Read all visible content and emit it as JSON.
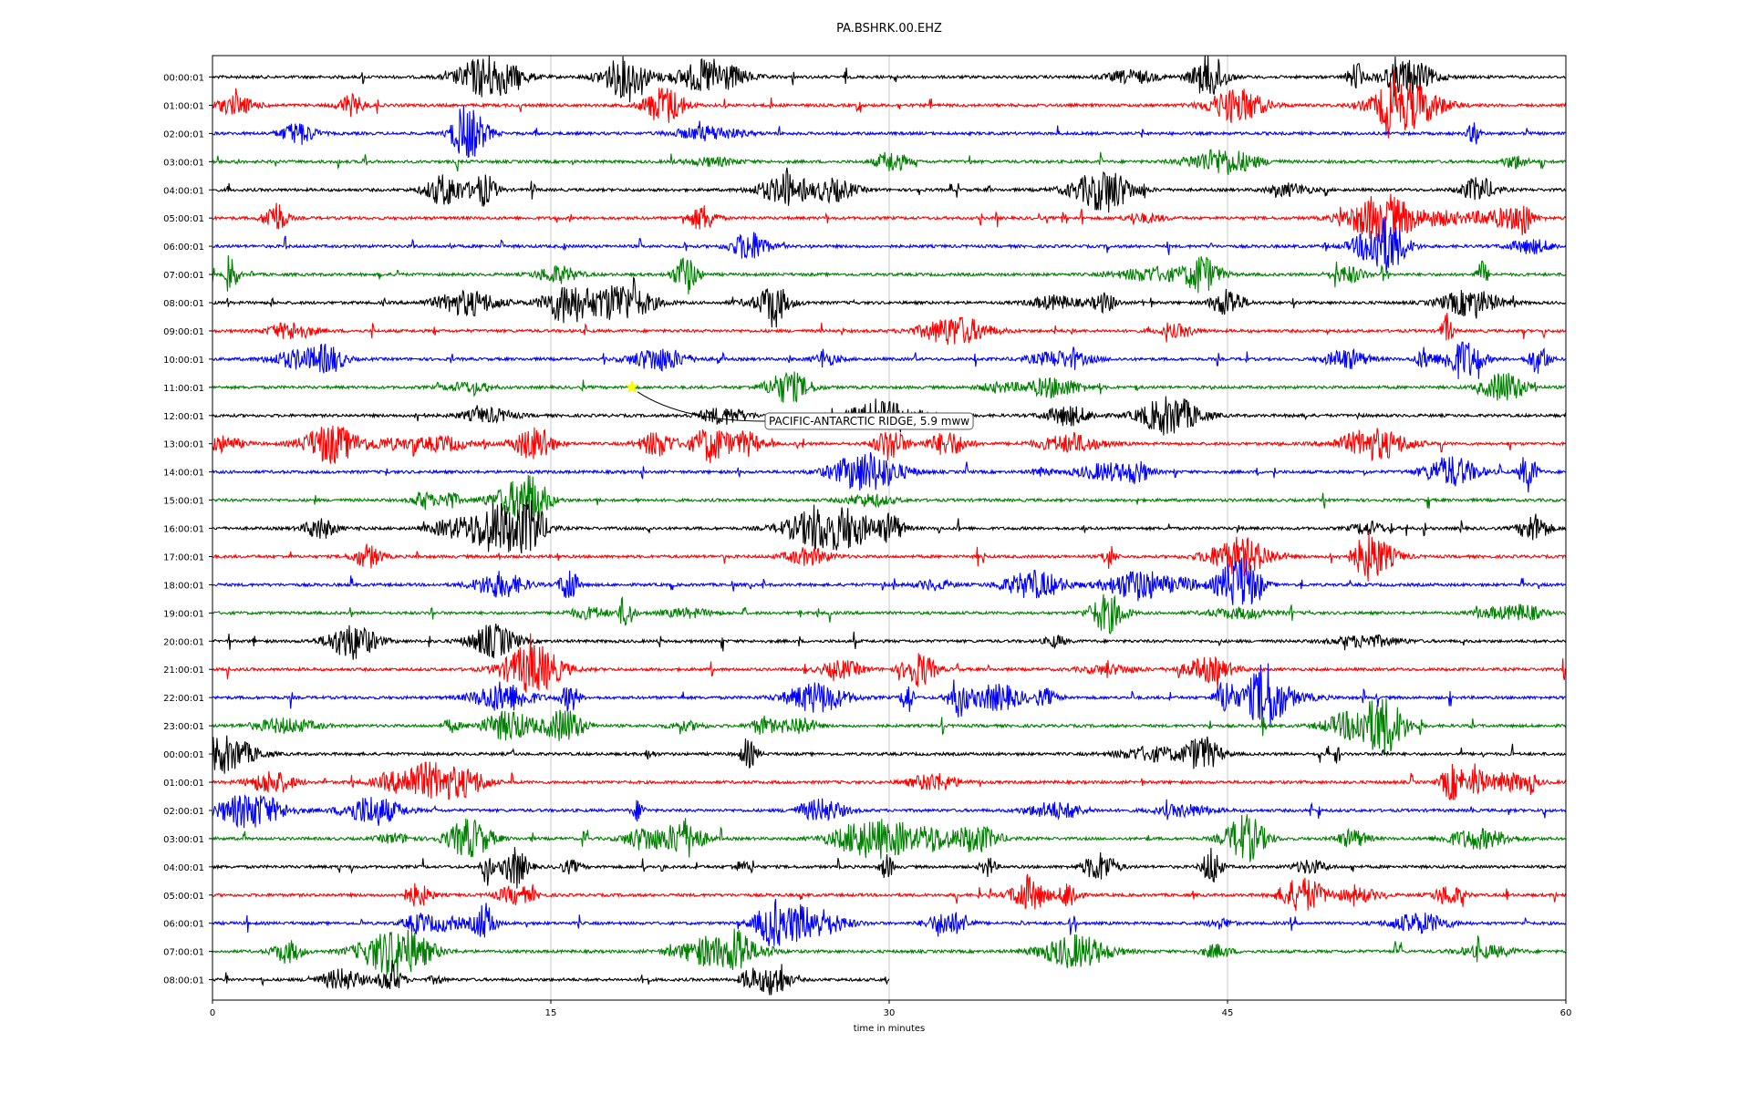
{
  "chart_data": {
    "type": "line",
    "title": "PA.BSHRK.00.EHZ",
    "xlabel": "time in minutes",
    "ylabel": "",
    "xlim": [
      0,
      60
    ],
    "xticks": [
      "0",
      "15",
      "30",
      "45",
      "60"
    ],
    "grid": "vertical at 15, 30, 45",
    "colors": [
      "#000000",
      "#ff0000",
      "#0000ff",
      "#008000"
    ],
    "series": [
      {
        "label": "00:00:01",
        "color": "#000000",
        "x_end": 60
      },
      {
        "label": "01:00:01",
        "color": "#ff0000",
        "x_end": 60
      },
      {
        "label": "02:00:01",
        "color": "#0000ff",
        "x_end": 60
      },
      {
        "label": "03:00:01",
        "color": "#008000",
        "x_end": 60
      },
      {
        "label": "04:00:01",
        "color": "#000000",
        "x_end": 60
      },
      {
        "label": "05:00:01",
        "color": "#ff0000",
        "x_end": 60
      },
      {
        "label": "06:00:01",
        "color": "#0000ff",
        "x_end": 60
      },
      {
        "label": "07:00:01",
        "color": "#008000",
        "x_end": 60
      },
      {
        "label": "08:00:01",
        "color": "#000000",
        "x_end": 60
      },
      {
        "label": "09:00:01",
        "color": "#ff0000",
        "x_end": 60
      },
      {
        "label": "10:00:01",
        "color": "#0000ff",
        "x_end": 60
      },
      {
        "label": "11:00:01",
        "color": "#008000",
        "x_end": 60
      },
      {
        "label": "12:00:01",
        "color": "#000000",
        "x_end": 60
      },
      {
        "label": "13:00:01",
        "color": "#ff0000",
        "x_end": 60
      },
      {
        "label": "14:00:01",
        "color": "#0000ff",
        "x_end": 60
      },
      {
        "label": "15:00:01",
        "color": "#008000",
        "x_end": 60
      },
      {
        "label": "16:00:01",
        "color": "#000000",
        "x_end": 60
      },
      {
        "label": "17:00:01",
        "color": "#ff0000",
        "x_end": 60
      },
      {
        "label": "18:00:01",
        "color": "#0000ff",
        "x_end": 60
      },
      {
        "label": "19:00:01",
        "color": "#008000",
        "x_end": 60
      },
      {
        "label": "20:00:01",
        "color": "#000000",
        "x_end": 60
      },
      {
        "label": "21:00:01",
        "color": "#ff0000",
        "x_end": 60
      },
      {
        "label": "22:00:01",
        "color": "#0000ff",
        "x_end": 60
      },
      {
        "label": "23:00:01",
        "color": "#008000",
        "x_end": 60
      },
      {
        "label": "00:00:01",
        "color": "#000000",
        "x_end": 60
      },
      {
        "label": "01:00:01",
        "color": "#ff0000",
        "x_end": 60
      },
      {
        "label": "02:00:01",
        "color": "#0000ff",
        "x_end": 60
      },
      {
        "label": "03:00:01",
        "color": "#008000",
        "x_end": 60
      },
      {
        "label": "04:00:01",
        "color": "#000000",
        "x_end": 60
      },
      {
        "label": "05:00:01",
        "color": "#ff0000",
        "x_end": 60
      },
      {
        "label": "06:00:01",
        "color": "#0000ff",
        "x_end": 60
      },
      {
        "label": "07:00:01",
        "color": "#008000",
        "x_end": 60
      },
      {
        "label": "08:00:01",
        "color": "#000000",
        "x_end": 30
      }
    ],
    "event": {
      "text": "PACIFIC-ANTARCTIC RIDGE, 5.9 mww",
      "row_label": "11:00:01",
      "time_minutes": 18.6,
      "marker": "yellow star",
      "marker_color": "#ffff00"
    }
  }
}
